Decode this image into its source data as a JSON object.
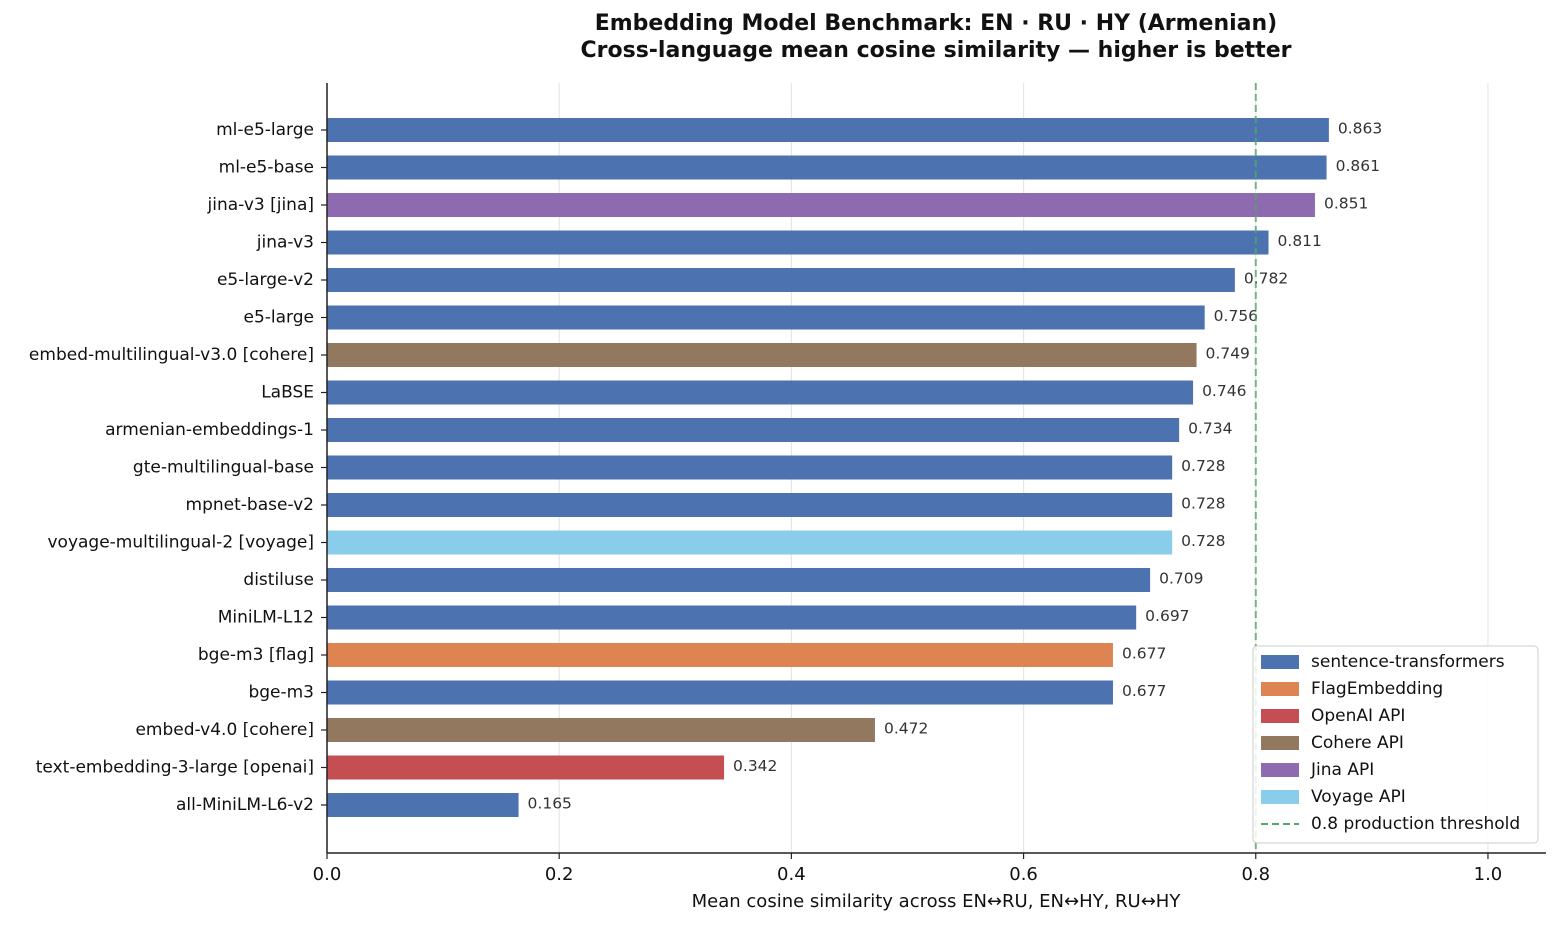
{
  "chart_data": {
    "type": "barh",
    "title": "Embedding Model Benchmark: EN · RU · HY (Armenian)",
    "subtitle": "Cross-language mean cosine similarity — higher is better",
    "xlabel": "Mean cosine similarity across EN↔RU, EN↔HY, RU↔HY",
    "categories": [
      "ml-e5-large",
      "ml-e5-base",
      "jina-v3 [jina]",
      "jina-v3",
      "e5-large-v2",
      "e5-large",
      "embed-multilingual-v3.0 [cohere]",
      "LaBSE",
      "armenian-embeddings-1",
      "gte-multilingual-base",
      "mpnet-base-v2",
      "voyage-multilingual-2 [voyage]",
      "distiluse",
      "MiniLM-L12",
      "bge-m3 [flag]",
      "bge-m3",
      "embed-v4.0 [cohere]",
      "text-embedding-3-large [openai]",
      "all-MiniLM-L6-v2"
    ],
    "values": [
      0.863,
      0.861,
      0.851,
      0.811,
      0.782,
      0.756,
      0.749,
      0.746,
      0.734,
      0.728,
      0.728,
      0.728,
      0.709,
      0.697,
      0.677,
      0.677,
      0.472,
      0.342,
      0.165
    ],
    "colors": [
      "#4c72b0",
      "#4c72b0",
      "#8e6bb0",
      "#4c72b0",
      "#4c72b0",
      "#4c72b0",
      "#937860",
      "#4c72b0",
      "#4c72b0",
      "#4c72b0",
      "#4c72b0",
      "#89cdea",
      "#4c72b0",
      "#4c72b0",
      "#dd8452",
      "#4c72b0",
      "#937860",
      "#c44e52",
      "#4c72b0"
    ],
    "legend": [
      {
        "name": "sentence-transformers",
        "color": "#4c72b0"
      },
      {
        "name": "FlagEmbedding",
        "color": "#dd8452"
      },
      {
        "name": "OpenAI API",
        "color": "#c44e52"
      },
      {
        "name": "Cohere API",
        "color": "#937860"
      },
      {
        "name": "Jina API",
        "color": "#8e6bb0"
      },
      {
        "name": "Voyage API",
        "color": "#89cdea"
      }
    ],
    "threshold": {
      "value": 0.8,
      "label": "0.8 production threshold",
      "color": "#55a868"
    },
    "legend_position": "lower right",
    "xlim": [
      0,
      1.05
    ],
    "xticks": [
      {
        "value": 0,
        "label": "0.0"
      },
      0.2,
      0.4,
      0.6,
      0.8,
      {
        "value": 1,
        "label": "1.0"
      }
    ],
    "grid": true
  }
}
